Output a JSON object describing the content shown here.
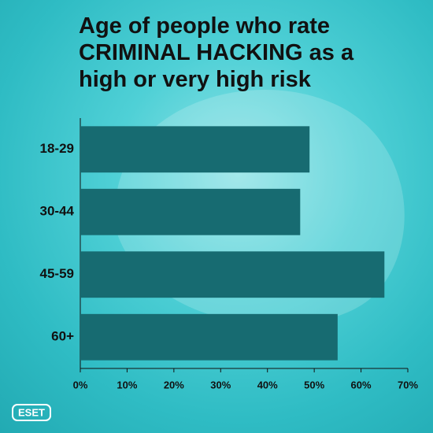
{
  "chart_data": {
    "type": "barh",
    "title": "Age of people who rate CRIMINAL HACKING as a high or very high risk",
    "categories": [
      "18-29",
      "30-44",
      "45-59",
      "60+"
    ],
    "values": [
      49,
      47,
      65,
      55
    ],
    "color": "#176b71",
    "xlim": [
      0,
      70
    ],
    "xticks": [
      {
        "value": 0,
        "label": "0%"
      },
      {
        "value": 10,
        "label": "10%"
      },
      {
        "value": 20,
        "label": "20%"
      },
      {
        "value": 30,
        "label": "30%"
      },
      {
        "value": 40,
        "label": "40%"
      },
      {
        "value": 50,
        "label": "50%"
      },
      {
        "value": 60,
        "label": "60%"
      },
      {
        "value": 70,
        "label": "70%"
      }
    ],
    "logo": "ESET"
  }
}
